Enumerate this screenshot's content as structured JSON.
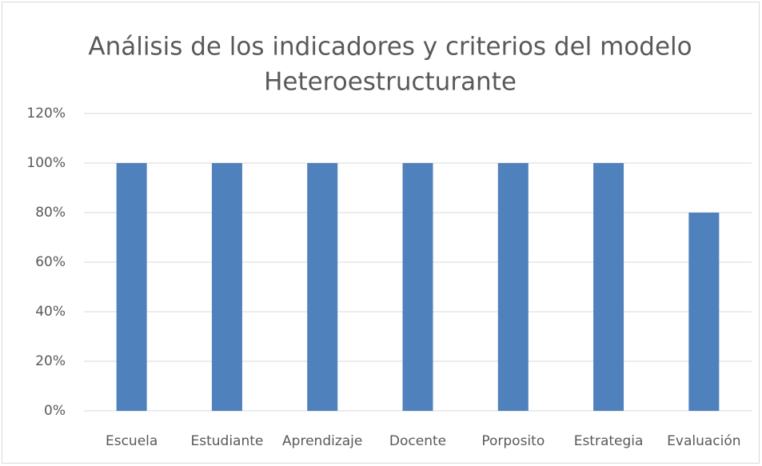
{
  "chart_data": {
    "type": "bar",
    "title": [
      "Análisis de los indicadores y criterios del modelo",
      "Heteroestructurante"
    ],
    "categories": [
      "Escuela",
      "Estudiante",
      "Aprendizaje",
      "Docente",
      "Porposito",
      "Estrategia",
      "Evaluación"
    ],
    "values": [
      100,
      100,
      100,
      100,
      100,
      100,
      80
    ],
    "color": "#4f81bd",
    "ylim": [
      0,
      120
    ],
    "yticks": [
      {
        "value": 0,
        "label": "0%"
      },
      {
        "value": 20,
        "label": "20%"
      },
      {
        "value": 40,
        "label": "40%"
      },
      {
        "value": 60,
        "label": "60%"
      },
      {
        "value": 80,
        "label": "80%"
      },
      {
        "value": 100,
        "label": "100%"
      },
      {
        "value": 120,
        "label": "120%"
      }
    ],
    "grid": true
  }
}
